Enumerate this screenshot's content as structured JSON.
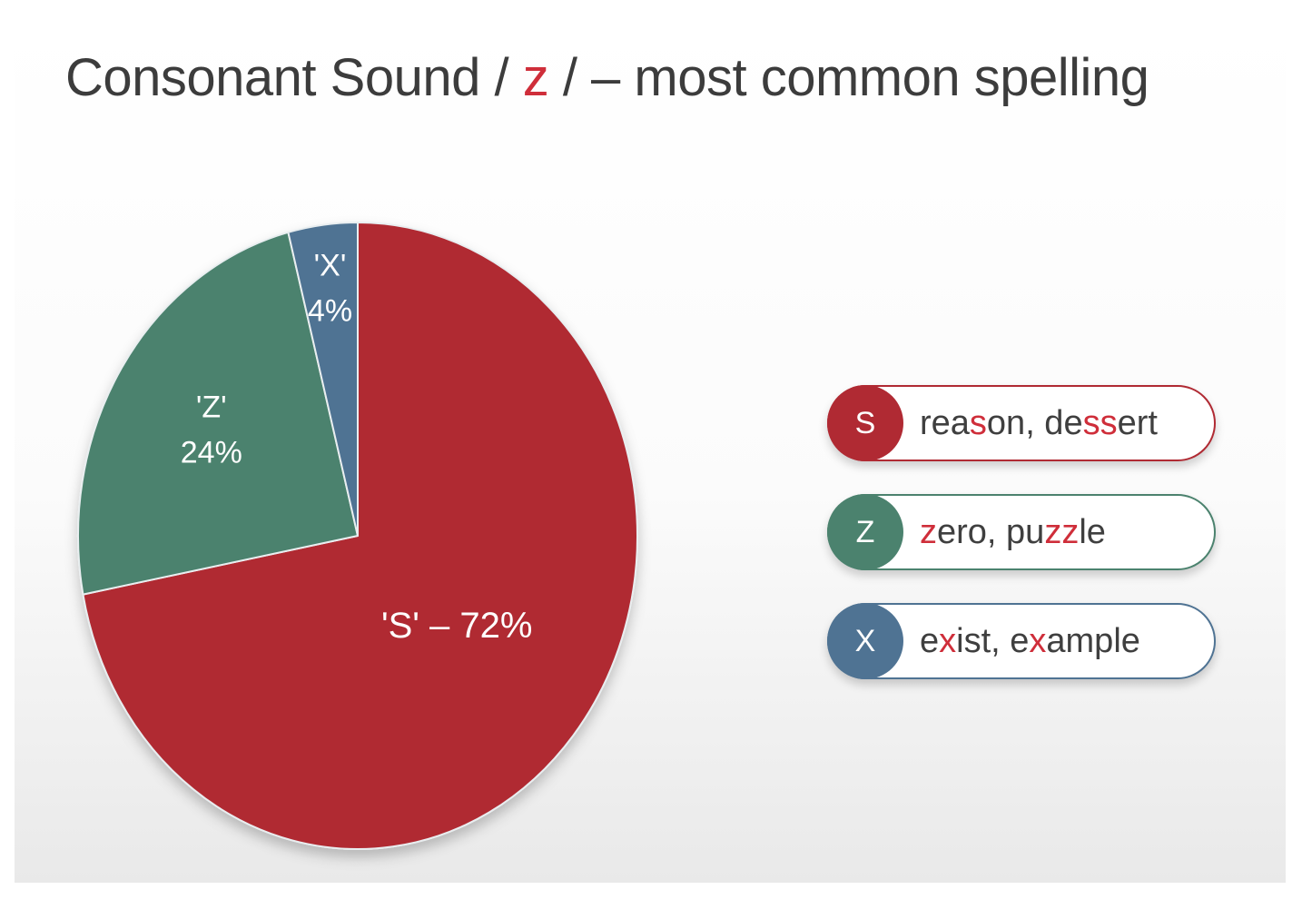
{
  "title": {
    "before": "Consonant Sound / ",
    "accent": "z",
    "after": " / – most common spelling"
  },
  "colors": {
    "S": "#b02a33",
    "Z": "#4b826e",
    "X": "#4f7393",
    "highlight": "#cf2e3a"
  },
  "chart_data": {
    "type": "pie",
    "slices": [
      {
        "label": "'S' – 72%",
        "category": "S",
        "value": 72
      },
      {
        "label_lines": [
          "'Z'",
          "24%"
        ],
        "category": "Z",
        "value": 24
      },
      {
        "label_lines": [
          "'X'",
          "4%"
        ],
        "category": "X",
        "value": 4
      }
    ]
  },
  "legend": [
    {
      "letter": "S",
      "color_key": "S",
      "parts": [
        "rea",
        "s",
        "on, de",
        "ss",
        "ert"
      ]
    },
    {
      "letter": "Z",
      "color_key": "Z",
      "parts": [
        "",
        "z",
        "ero, pu",
        "zz",
        "le"
      ]
    },
    {
      "letter": "X",
      "color_key": "X",
      "parts": [
        "e",
        "x",
        "ist, e",
        "x",
        "ample"
      ]
    }
  ]
}
